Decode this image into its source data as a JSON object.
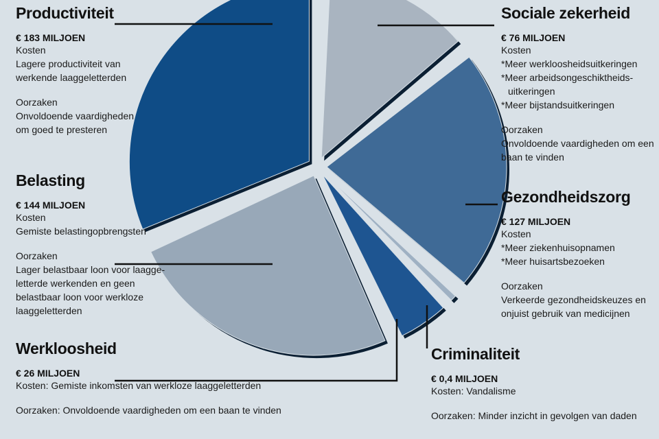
{
  "chart_data": {
    "type": "pie",
    "unit": "MILJOEN",
    "slices": [
      {
        "label": "Sociale zekerheid",
        "value": 76,
        "amount_label": "€ 76 MILJOEN",
        "color": "#a9b4c0"
      },
      {
        "label": "Gezondheidszorg",
        "value": 127,
        "amount_label": "€ 127  MILJOEN",
        "color": "#3f6a96"
      },
      {
        "label": "Criminaliteit",
        "value": 0.4,
        "amount_label": "€ 0,4 MILJOEN",
        "color": "#9fb1c3"
      },
      {
        "label": "Werkloosheid",
        "value": 26,
        "amount_label": "€ 26 MILJOEN",
        "color": "#1e5591"
      },
      {
        "label": "Belasting",
        "value": 144,
        "amount_label": "€ 144 MILJOEN",
        "color": "#98a8b8"
      },
      {
        "label": "Productiviteit",
        "value": 183,
        "amount_label": "€ 183 MILJOEN",
        "color": "#0f4c86"
      }
    ]
  },
  "blocks": {
    "productiviteit": {
      "title": "Productiviteit",
      "amount": "€ 183 MILJOEN",
      "kosten_label": "Kosten",
      "kosten_lines": [
        "Lagere productiviteit van",
        "werkende laaggeletterden"
      ],
      "oorzaken_label": "Oorzaken",
      "oorzaken_lines": [
        "Onvoldoende vaardigheden",
        "om goed te presteren"
      ]
    },
    "belasting": {
      "title": "Belasting",
      "amount": "€ 144 MILJOEN",
      "kosten_label": "Kosten",
      "kosten_lines": [
        "Gemiste belastingopbrengsten"
      ],
      "oorzaken_label": "Oorzaken",
      "oorzaken_lines": [
        "Lager belastbaar loon voor laagge-",
        "letterde werkenden en geen",
        "belastbaar loon voor werkloze",
        "laaggeletterden"
      ]
    },
    "werkloosheid": {
      "title": "Werkloosheid",
      "amount": "€ 26 MILJOEN",
      "kosten_line": "Kosten: Gemiste inkomsten van werkloze laaggeletterden",
      "oorzaken_line": "Oorzaken: Onvoldoende vaardigheden om een baan te vinden"
    },
    "sociale": {
      "title": "Sociale zekerheid",
      "amount": "€ 76 MILJOEN",
      "kosten_label": "Kosten",
      "kosten_lines": [
        "*Meer werkloosheidsuitkeringen",
        "*Meer arbeidsongeschiktheids-"
      ],
      "kosten_indent": "uitkeringen",
      "kosten_last": "*Meer bijstandsuitkeringen",
      "oorzaken_label": "Oorzaken",
      "oorzaken_lines": [
        "Onvoldoende vaardigheden om een",
        "baan te vinden"
      ]
    },
    "gezondheid": {
      "title": "Gezondheidszorg",
      "amount": "€ 127  MILJOEN",
      "kosten_label": "Kosten",
      "kosten_lines": [
        "*Meer ziekenhuisopnamen",
        "*Meer huisartsbezoeken"
      ],
      "oorzaken_label": "Oorzaken",
      "oorzaken_lines": [
        "Verkeerde gezondheidskeuzes en",
        "onjuist gebruik van medicijnen"
      ]
    },
    "criminaliteit": {
      "title": "Criminaliteit",
      "amount": "€ 0,4 MILJOEN",
      "kosten_line": "Kosten: Vandalisme",
      "oorzaken_line": "Oorzaken: Minder inzicht in gevolgen van daden"
    }
  }
}
